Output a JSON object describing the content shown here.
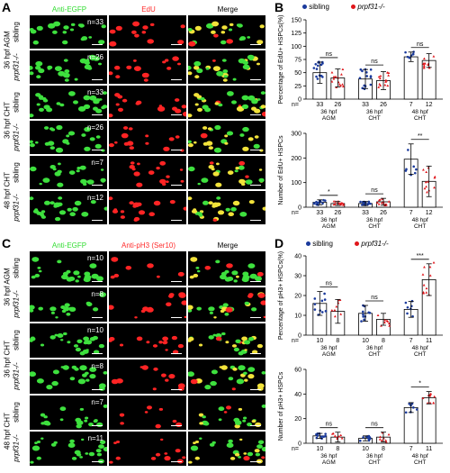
{
  "panels": {
    "A": "A",
    "B": "B",
    "C": "C",
    "D": "D"
  },
  "panelA": {
    "columns": [
      "Anti-EGFP",
      "EdU",
      "Merge"
    ],
    "column_colors": [
      "#33dd33",
      "#ff2a2a",
      "#000000"
    ],
    "groups": [
      "36 hpf AGM",
      "36 hpf CHT",
      "48 hpf CHT"
    ],
    "rows": [
      {
        "label": "sibling",
        "n": "n=33"
      },
      {
        "label": "prpf31-/-",
        "n": "n=26"
      },
      {
        "label": "sibling",
        "n": "n=33"
      },
      {
        "label": "prpf31-/-",
        "n": "n=26"
      },
      {
        "label": "sibling",
        "n": "n=7"
      },
      {
        "label": "prpf31-/-",
        "n": "n=12"
      }
    ]
  },
  "panelC": {
    "columns": [
      "Anti-EGFP",
      "Anti-pH3 (Ser10)",
      "Merge"
    ],
    "groups": [
      "36 hpf AGM",
      "36 hpf CHT",
      "48 hpf CHT"
    ],
    "rows": [
      {
        "label": "sibling",
        "n": "n=10"
      },
      {
        "label": "prpf31-/-",
        "n": "n=8"
      },
      {
        "label": "sibling",
        "n": "n=10"
      },
      {
        "label": "prpf31-/-",
        "n": "n=8"
      },
      {
        "label": "sibling",
        "n": "n=7"
      },
      {
        "label": "prpf31-/-",
        "n": "n=11"
      }
    ]
  },
  "legend": {
    "sibling": "sibling",
    "mutant": "prpf31-/-",
    "sibling_color": "#1a3a9c",
    "mutant_color": "#e0161b"
  },
  "chart_data": [
    {
      "id": "B-top",
      "type": "bar",
      "ylabel": "Percentage of EdU+ HSPCs(%)",
      "ylim": [
        0,
        150
      ],
      "yticks": [
        0,
        25,
        50,
        75,
        100,
        125,
        150
      ],
      "categories": [
        "36 hpf AGM",
        "36 hpf CHT",
        "48 hpf CHT"
      ],
      "series": [
        {
          "name": "sibling",
          "values": [
            50,
            38,
            80
          ],
          "err": [
            20,
            18,
            9
          ],
          "n": [
            33,
            33,
            7
          ]
        },
        {
          "name": "prpf31-/-",
          "values": [
            40,
            35,
            73
          ],
          "err": [
            17,
            17,
            13
          ],
          "n": [
            26,
            26,
            12
          ]
        }
      ],
      "significance": [
        "ns",
        "ns",
        "ns"
      ]
    },
    {
      "id": "B-bottom",
      "type": "bar",
      "ylabel": "Number of EdU+ HSPCs",
      "ylim": [
        0,
        300
      ],
      "yticks": [
        0,
        100,
        200,
        300
      ],
      "categories": [
        "36 hpf AGM",
        "36 hpf CHT",
        "48 hpf CHT"
      ],
      "series": [
        {
          "name": "sibling",
          "values": [
            20,
            15,
            195
          ],
          "err": [
            10,
            8,
            62
          ],
          "n": [
            33,
            33,
            7
          ]
        },
        {
          "name": "prpf31-/-",
          "values": [
            15,
            22,
            105
          ],
          "err": [
            8,
            14,
            62
          ],
          "n": [
            26,
            26,
            12
          ]
        }
      ],
      "significance": [
        "*",
        "ns",
        "**"
      ]
    },
    {
      "id": "D-top",
      "type": "bar",
      "ylabel": "Percentage of pH3+ HSPCs(%)",
      "ylim": [
        0,
        40
      ],
      "yticks": [
        0,
        10,
        20,
        30,
        40
      ],
      "categories": [
        "36 hpf AGM",
        "36 hpf CHT",
        "48 hpf CHT"
      ],
      "series": [
        {
          "name": "sibling",
          "values": [
            16,
            11,
            13
          ],
          "err": [
            6,
            4,
            4
          ],
          "n": [
            10,
            10,
            7
          ]
        },
        {
          "name": "prpf31-/-",
          "values": [
            12,
            8,
            28
          ],
          "err": [
            6,
            3,
            8
          ],
          "n": [
            8,
            8,
            11
          ]
        }
      ],
      "significance": [
        "ns",
        "ns",
        "***"
      ]
    },
    {
      "id": "D-bottom",
      "type": "bar",
      "ylabel": "Number of pH3+ HSPCs",
      "ylim": [
        0,
        60
      ],
      "yticks": [
        0,
        20,
        40,
        60
      ],
      "categories": [
        "36 hpf AGM",
        "36 hpf CHT",
        "48 hpf CHT"
      ],
      "series": [
        {
          "name": "sibling",
          "values": [
            6,
            4,
            29
          ],
          "err": [
            2,
            2,
            4
          ],
          "n": [
            10,
            10,
            7
          ]
        },
        {
          "name": "prpf31-/-",
          "values": [
            5,
            5,
            37
          ],
          "err": [
            4,
            4,
            5
          ],
          "n": [
            8,
            8,
            11
          ]
        }
      ],
      "significance": [
        "ns",
        "ns",
        "*"
      ]
    }
  ]
}
